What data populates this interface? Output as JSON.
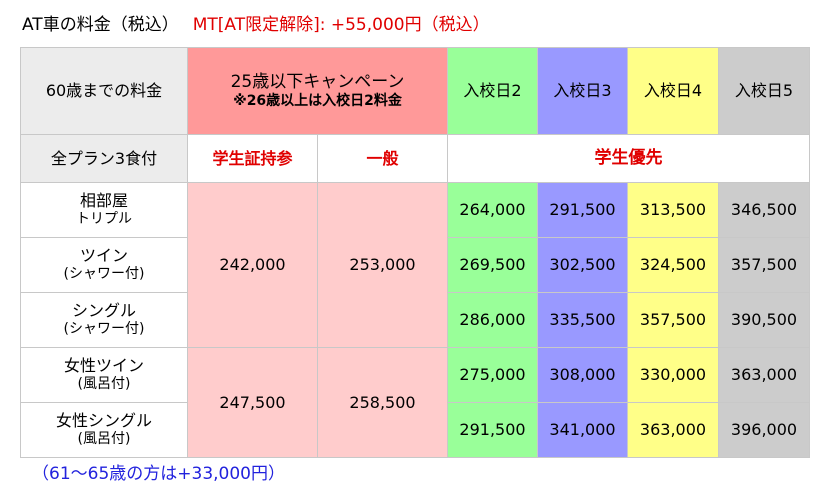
{
  "title": {
    "main": "AT車の料金（税込）",
    "mt": "MT[AT限定解除]: +55,000円（税込）"
  },
  "table": {
    "header1": {
      "age": "60歳までの料金",
      "campaign": "25歳以下キャンペーン",
      "campaign_note": "※26歳以上は入校日2料金",
      "days": [
        "入校日2",
        "入校日3",
        "入校日4",
        "入校日5"
      ]
    },
    "header2": {
      "plan": "全プラン3食付",
      "student": "学生証持参",
      "general": "一般",
      "priority": "学生優先"
    },
    "rows": [
      {
        "name1": "相部屋",
        "name2": "トリプル",
        "prices": [
          "264,000",
          "291,500",
          "313,500",
          "346,500"
        ]
      },
      {
        "name1": "ツイン",
        "name2": "(シャワー付)",
        "prices": [
          "269,500",
          "302,500",
          "324,500",
          "357,500"
        ]
      },
      {
        "name1": "シングル",
        "name2": "(シャワー付)",
        "prices": [
          "286,000",
          "335,500",
          "357,500",
          "390,500"
        ]
      },
      {
        "name1": "女性ツイン",
        "name2": "(風呂付)",
        "prices": [
          "275,000",
          "308,000",
          "330,000",
          "363,000"
        ]
      },
      {
        "name1": "女性シングル",
        "name2": "(風呂付)",
        "prices": [
          "291,500",
          "341,000",
          "363,000",
          "396,000"
        ]
      }
    ],
    "groups": [
      {
        "student": "242,000",
        "general": "253,000"
      },
      {
        "student": "247,500",
        "general": "258,500"
      }
    ]
  },
  "note": "（61～65歳の方は+33,000円）",
  "colors": {
    "campaign_header": "#ff9999",
    "campaign_cells": "#ffcccc",
    "day2": "#99ff99",
    "day3": "#9999ff",
    "day4": "#ffff88",
    "day5": "#cccccc",
    "accent_red": "#e00000",
    "note_blue": "#2222dd"
  }
}
